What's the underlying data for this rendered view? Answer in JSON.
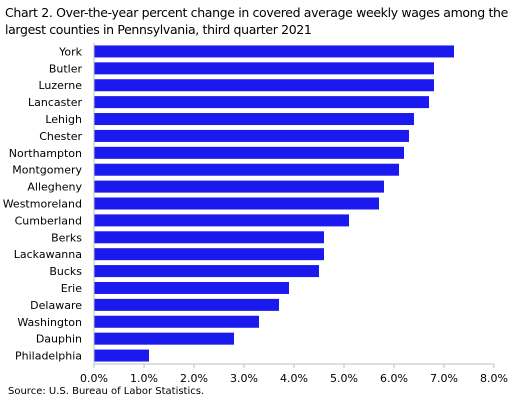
{
  "title": "Chart 2. Over-the-year percent change in covered average weekly wages among the largest counties in Pennsylvania, third quarter 2021",
  "source": "Source:  U.S. Bureau of Labor Statistics.",
  "colors": {
    "bar": "#1a1aee",
    "axis": "#bfbfbf",
    "text": "#000000"
  },
  "chart_data": {
    "type": "bar",
    "orientation": "horizontal",
    "title": "Chart 2. Over-the-year percent change in covered average weekly wages among the largest counties in Pennsylvania, third quarter 2021",
    "xlabel": "",
    "ylabel": "",
    "categories": [
      "York",
      "Butler",
      "Luzerne",
      "Lancaster",
      "Lehigh",
      "Chester",
      "Northampton",
      "Montgomery",
      "Allegheny",
      "Westmoreland",
      "Cumberland",
      "Berks",
      "Lackawanna",
      "Bucks",
      "Erie",
      "Delaware",
      "Washington",
      "Dauphin",
      "Philadelphia"
    ],
    "values": [
      7.2,
      6.8,
      6.8,
      6.7,
      6.4,
      6.3,
      6.2,
      6.1,
      5.8,
      5.7,
      5.1,
      4.6,
      4.6,
      4.5,
      3.9,
      3.7,
      3.3,
      2.8,
      1.1
    ],
    "xlim": [
      0,
      8
    ],
    "xticks": [
      "0.0%",
      "1.0%",
      "2.0%",
      "3.0%",
      "4.0%",
      "5.0%",
      "6.0%",
      "7.0%",
      "8.0%"
    ],
    "grid": false,
    "legend": "none"
  }
}
